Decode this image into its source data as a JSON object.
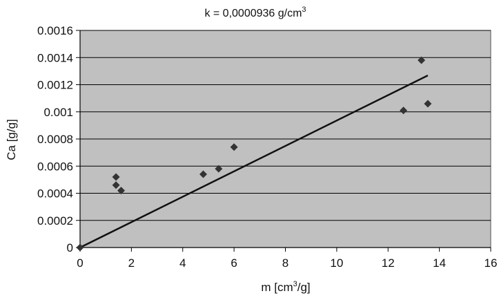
{
  "chart_data": {
    "type": "scatter",
    "title": "k = 0,0000936 g/cm",
    "title_superscript": "3",
    "xlabel": "m [cm",
    "xlabel_superscript": "3",
    "xlabel_suffix": "/g]",
    "ylabel": "Ca [g/g]",
    "xlim": [
      0,
      16
    ],
    "ylim": [
      0,
      0.0016
    ],
    "x_ticks": [
      "0",
      "2",
      "4",
      "6",
      "8",
      "10",
      "12",
      "14",
      "16"
    ],
    "y_ticks": [
      "0",
      "0.0002",
      "0.0004",
      "0.0006",
      "0.0008",
      "0.001",
      "0.0012",
      "0.0014",
      "0.0016"
    ],
    "grid": true,
    "series": [
      {
        "marker": "diamond",
        "points": [
          {
            "x": 0,
            "y": 0
          },
          {
            "x": 1.4,
            "y": 0.00052
          },
          {
            "x": 1.4,
            "y": 0.00046
          },
          {
            "x": 1.6,
            "y": 0.00042
          },
          {
            "x": 4.8,
            "y": 0.00054
          },
          {
            "x": 5.4,
            "y": 0.00058
          },
          {
            "x": 6.0,
            "y": 0.00074
          },
          {
            "x": 12.6,
            "y": 0.00101
          },
          {
            "x": 13.3,
            "y": 0.00138
          },
          {
            "x": 13.55,
            "y": 0.00106
          }
        ]
      }
    ],
    "trendline": {
      "x": [
        0,
        13.55
      ],
      "y": [
        0,
        0.001268
      ]
    },
    "colors": {
      "plot_background": "#c0c0c0",
      "marker": "#333333",
      "line": "#111111",
      "grid": "#000000"
    }
  }
}
